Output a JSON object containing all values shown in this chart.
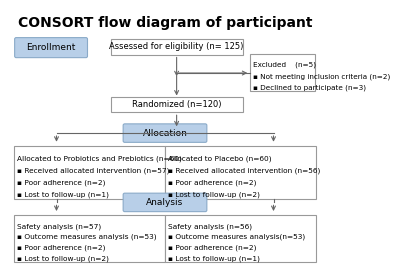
{
  "title": "CONSORT flow diagram of participant",
  "title_fontsize": 10,
  "title_fontweight": "bold",
  "bg_color": "#ffffff",
  "box_edge_color": "#999999",
  "blue_fill": "#b8cfe8",
  "blue_edge": "#8aaac8",
  "white_fill": "#ffffff",
  "arrow_color": "#666666",
  "enrollment_label": "Enrollment",
  "allocation_label": "Allocation",
  "analysis_label": "Analysis",
  "assessed_text": "Assessed for eligibility (n= 125)",
  "excluded_lines": [
    "Excluded    (n=5)",
    "▪ Not meeting inclusion criteria (n=2)",
    "▪ Declined to participate (n=3)"
  ],
  "randomized_text": "Randomized (n=120)",
  "left_alloc_lines": [
    "Allocated to Probiotics and Prebiotics (n=60)",
    "▪ Received allocated intervention (n=57)",
    "▪ Poor adherence (n=2)",
    "▪ Lost to follow-up (n=1)"
  ],
  "right_alloc_lines": [
    "Allocated to Placebo (n=60)",
    "▪ Received allocated intervention (n=56)",
    "▪ Poor adherence (n=2)",
    "▪ Lost to follow-up (n=2)"
  ],
  "left_analysis_lines": [
    "Safety analysis (n=57)",
    "▪ Outcome measures analysis (n=53)",
    "▪ Poor adherence (n=2)",
    "▪ Lost to follow-up (n=2)"
  ],
  "right_analysis_lines": [
    "Safety analysis (n=56)",
    "▪ Outcome measures analysis(n=53)",
    "▪ Poor adherence (n=2)",
    "▪ Lost to follow-up (n=1)"
  ]
}
